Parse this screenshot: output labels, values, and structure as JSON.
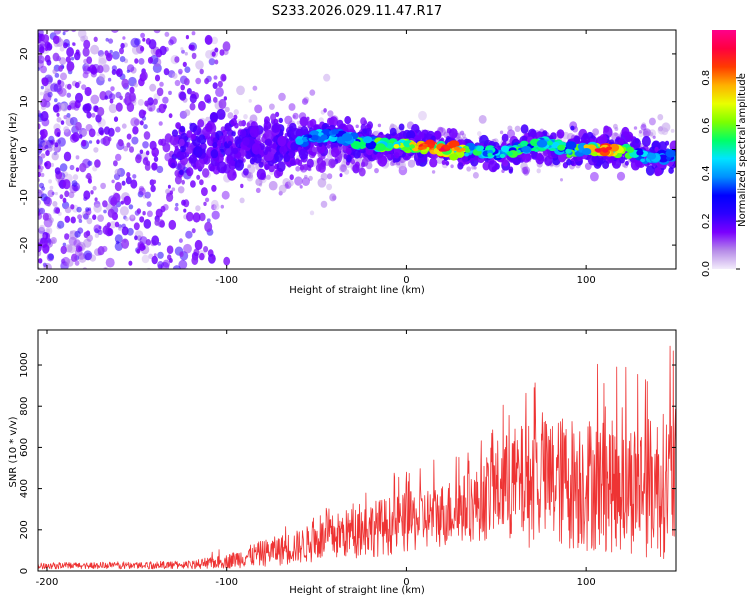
{
  "title": "S233.2026.029.11.47.R17",
  "chart_data": [
    {
      "type": "heatmap",
      "title": "S233.2026.029.11.47.R17",
      "xlabel": "Height of straight line (km)",
      "ylabel": "Frequency (Hz)",
      "xlim": [
        -205,
        150
      ],
      "ylim": [
        -25,
        25
      ],
      "xticks": [
        -200,
        -100,
        0,
        100
      ],
      "yticks": [
        -20,
        -10,
        0,
        10,
        20
      ],
      "colorbar": {
        "label": "Normalized spectral amplitude",
        "range": [
          0,
          1
        ],
        "ticks": [
          0.0,
          0.2,
          0.4,
          0.6,
          0.8
        ],
        "tick_labels": [
          "0.0",
          "0.2",
          "0.4",
          "0.6",
          "0.8"
        ],
        "colors": [
          "#f3ecfb",
          "#b68be8",
          "#7a00ff",
          "#2c00ff",
          "#0000ff",
          "#0090ff",
          "#00e5ff",
          "#00ff66",
          "#7dff00",
          "#e9ff00",
          "#ffb000",
          "#ff3b00",
          "#ff0040",
          "#ff008a"
        ]
      },
      "ridge": {
        "x": [
          -60,
          -40,
          -20,
          -10,
          0,
          10,
          20,
          30,
          40,
          50,
          60,
          70,
          80,
          90,
          100,
          110,
          120,
          130,
          140,
          150
        ],
        "freq_hz": [
          2,
          3,
          1,
          1,
          1,
          0.5,
          0,
          0,
          -0.5,
          -1,
          0,
          1,
          1,
          0,
          0,
          0,
          0,
          -1,
          -2,
          -1
        ],
        "peak_amplitude": [
          0.45,
          0.5,
          0.6,
          0.7,
          0.7,
          0.9,
          0.95,
          0.85,
          0.55,
          0.5,
          0.6,
          0.55,
          0.55,
          0.6,
          0.75,
          0.95,
          0.7,
          0.5,
          0.45,
          0.4
        ]
      }
    },
    {
      "type": "line",
      "xlabel": "Height of straight line (km)",
      "ylabel": "SNR (10 * v/v)",
      "xlim": [
        -205,
        150
      ],
      "ylim": [
        0,
        1170
      ],
      "xticks": [
        -200,
        -100,
        0,
        100
      ],
      "yticks": [
        0,
        200,
        400,
        600,
        800,
        1000
      ],
      "series": [
        {
          "name": "SNR",
          "color": "#ee3333",
          "envelope": {
            "x": [
              -205,
              -160,
              -120,
              -100,
              -80,
              -60,
              -40,
              -20,
              0,
              20,
              40,
              50,
              60,
              80,
              100,
              120,
              140,
              150
            ],
            "baseline": [
              15,
              15,
              20,
              30,
              50,
              80,
              120,
              170,
              200,
              280,
              360,
              350,
              300,
              250,
              220,
              200,
              150,
              150
            ],
            "typical_peak": [
              35,
              40,
              45,
              80,
              150,
              200,
              280,
              340,
              380,
              430,
              500,
              640,
              700,
              750,
              760,
              720,
              760,
              800
            ],
            "max_peak": [
              60,
              80,
              80,
              120,
              210,
              250,
              330,
              430,
              500,
              560,
              660,
              860,
              900,
              1000,
              1040,
              1000,
              1090,
              1160
            ]
          }
        }
      ]
    }
  ]
}
